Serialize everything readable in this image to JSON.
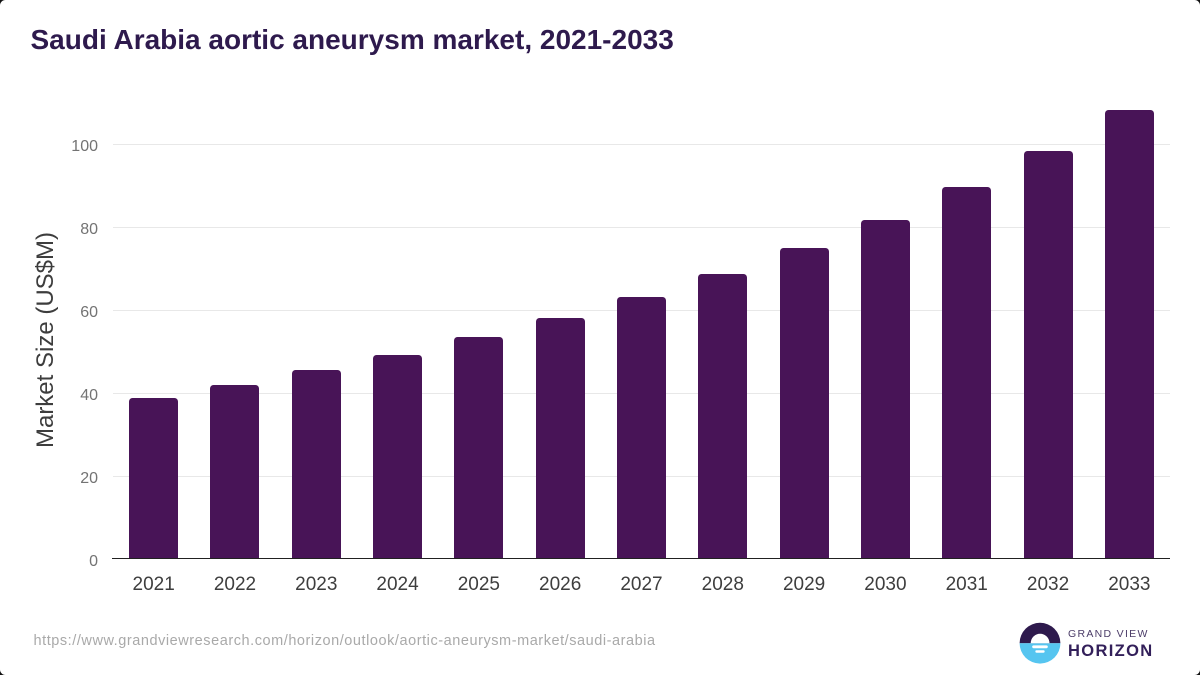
{
  "page": {
    "title": "Saudi Arabia aortic aneurysm market, 2021-2033",
    "source_url": "https://www.grandviewresearch.com/horizon/outlook/aortic-aneurysm-market/saudi-arabia",
    "logo": {
      "name": "Grand View Horizon",
      "line1": "GRAND VIEW",
      "line2": "HORIZON"
    }
  },
  "colors": {
    "bar": "#481457",
    "title": "#2e1a4d",
    "gridline": "#e8e8e8",
    "axis_line": "#212121",
    "y_tick_label": "#737373",
    "x_tick_label": "#3e3e3e",
    "y_axis_title": "#3d3d3d",
    "source_url": "#a9a9a9",
    "logo_dark": "#2e1a4d",
    "logo_blue": "#56c5f0"
  },
  "chart_data": {
    "type": "bar",
    "title": "Saudi Arabia aortic aneurysm market, 2021-2033",
    "categories": [
      "2021",
      "2022",
      "2023",
      "2024",
      "2025",
      "2026",
      "2027",
      "2028",
      "2029",
      "2030",
      "2031",
      "2032",
      "2033"
    ],
    "values": [
      38.8,
      41.9,
      45.4,
      49.0,
      53.4,
      57.9,
      63.0,
      68.7,
      74.8,
      81.7,
      89.6,
      98.2,
      108.1
    ],
    "xlabel": "",
    "ylabel": "Market Size (US$M)",
    "ylim": [
      0,
      110
    ],
    "yticks": [
      0,
      20,
      40,
      60,
      80,
      100
    ],
    "grid": true,
    "legend": false,
    "bar_color": "#481457"
  }
}
